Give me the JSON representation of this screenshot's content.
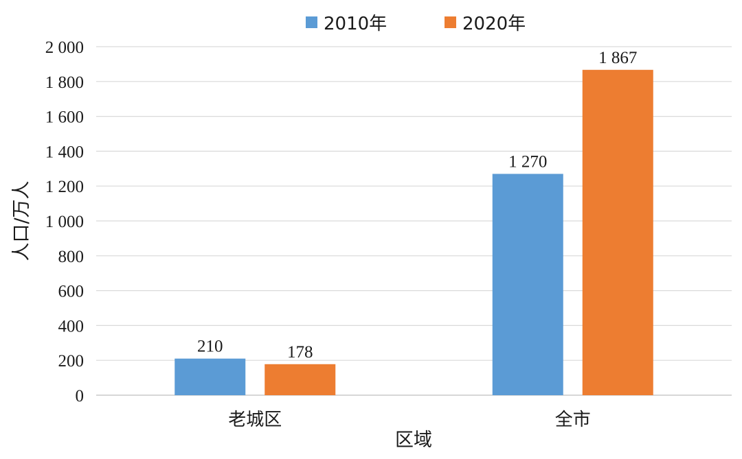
{
  "chart_data": {
    "type": "bar",
    "categories": [
      "老城区",
      "全市"
    ],
    "series": [
      {
        "name": "2010年",
        "values": [
          210,
          1270
        ],
        "data_labels": [
          "210",
          "1 270"
        ],
        "color": "#5b9bd5"
      },
      {
        "name": "2020年",
        "values": [
          178,
          1867
        ],
        "data_labels": [
          "178",
          "1 867"
        ],
        "color": "#ed7d31"
      }
    ],
    "xlabel": "区域",
    "ylabel": "人口/万人",
    "ylim": [
      0,
      2000
    ],
    "yticks": [
      0,
      200,
      400,
      600,
      800,
      1000,
      1200,
      1400,
      1600,
      1800,
      2000
    ],
    "ytick_labels": [
      "0",
      "200",
      "400",
      "600",
      "800",
      "1 000",
      "1 200",
      "1 400",
      "1 600",
      "1 800",
      "2 000"
    ],
    "grid": true,
    "legend_position": "top-center"
  }
}
